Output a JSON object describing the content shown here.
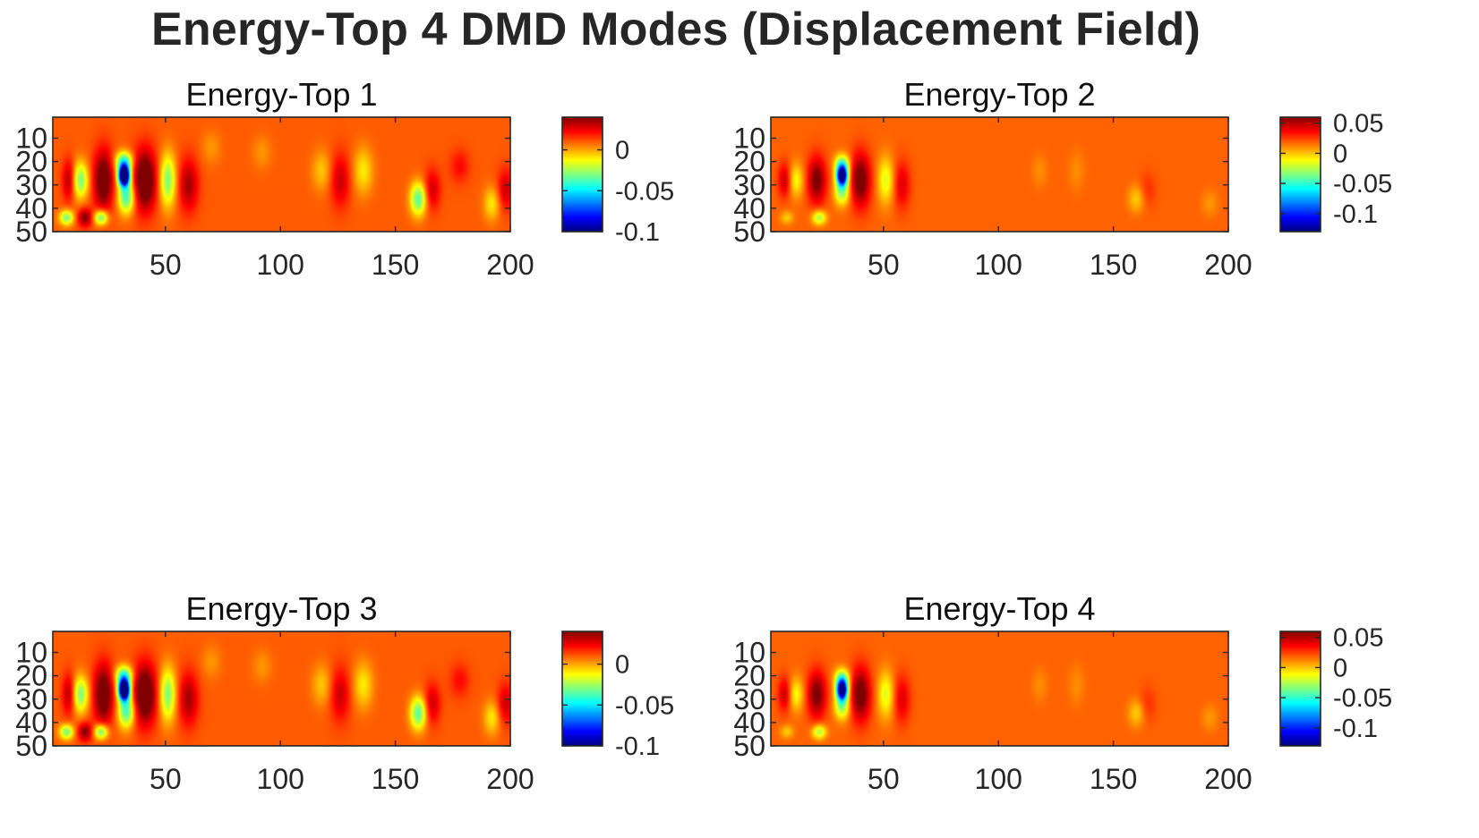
{
  "figure": {
    "title": "Energy-Top 4 DMD Modes (Displacement Field)"
  },
  "chart_data": [
    {
      "type": "heatmap",
      "title": "Energy-Top 1",
      "colormap": "jet",
      "xlim": [
        1,
        200
      ],
      "ylim": [
        1,
        50
      ],
      "x_ticks": [
        "50",
        "100",
        "150",
        "200"
      ],
      "y_ticks": [
        "10",
        "20",
        "30",
        "40",
        "50"
      ],
      "y_reversed": true,
      "colorbar": {
        "min": -0.1,
        "max": 0.04,
        "ticks": [
          {
            "value": 0,
            "label": "0"
          },
          {
            "value": -0.05,
            "label": "-0.05"
          },
          {
            "value": -0.1,
            "label": "-0.1"
          }
        ]
      },
      "background_value": 0.01,
      "features": [
        {
          "x": 32,
          "y": 26,
          "sx": 1.7,
          "sy": 3.0,
          "v": -0.15
        },
        {
          "x": 32,
          "y": 20,
          "sx": 2.6,
          "sy": 3.0,
          "v": -0.05
        },
        {
          "x": 33,
          "y": 35,
          "sx": 2.5,
          "sy": 5.0,
          "v": -0.05
        },
        {
          "x": 13,
          "y": 28,
          "sx": 2.5,
          "sy": 5.5,
          "v": -0.04
        },
        {
          "x": 8,
          "y": 28,
          "sx": 2.0,
          "sy": 6.0,
          "v": 0.025
        },
        {
          "x": 7,
          "y": 44,
          "sx": 2.2,
          "sy": 2.3,
          "v": -0.04
        },
        {
          "x": 15,
          "y": 44,
          "sx": 2.2,
          "sy": 2.8,
          "v": 0.03
        },
        {
          "x": 22,
          "y": 44,
          "sx": 2.2,
          "sy": 2.3,
          "v": -0.045
        },
        {
          "x": 23,
          "y": 28,
          "sx": 3.0,
          "sy": 9.0,
          "v": 0.04
        },
        {
          "x": 41,
          "y": 28,
          "sx": 3.5,
          "sy": 9.0,
          "v": 0.045
        },
        {
          "x": 51,
          "y": 28,
          "sx": 2.5,
          "sy": 8.0,
          "v": -0.04
        },
        {
          "x": 60,
          "y": 30,
          "sx": 3.0,
          "sy": 8.0,
          "v": 0.025
        },
        {
          "x": 70,
          "y": 14,
          "sx": 3.0,
          "sy": 5.0,
          "v": -0.008
        },
        {
          "x": 92,
          "y": 16,
          "sx": 3.0,
          "sy": 5.0,
          "v": -0.008
        },
        {
          "x": 118,
          "y": 24,
          "sx": 3.0,
          "sy": 6.0,
          "v": -0.015
        },
        {
          "x": 126,
          "y": 28,
          "sx": 3.0,
          "sy": 8.0,
          "v": 0.02
        },
        {
          "x": 136,
          "y": 24,
          "sx": 3.0,
          "sy": 7.0,
          "v": -0.02
        },
        {
          "x": 160,
          "y": 36,
          "sx": 2.5,
          "sy": 5.0,
          "v": -0.045
        },
        {
          "x": 166,
          "y": 32,
          "sx": 2.5,
          "sy": 6.0,
          "v": 0.02
        },
        {
          "x": 178,
          "y": 22,
          "sx": 3.0,
          "sy": 5.0,
          "v": 0.012
        },
        {
          "x": 192,
          "y": 38,
          "sx": 2.5,
          "sy": 5.0,
          "v": -0.02
        },
        {
          "x": 198,
          "y": 32,
          "sx": 2.5,
          "sy": 6.0,
          "v": 0.02
        }
      ]
    },
    {
      "type": "heatmap",
      "title": "Energy-Top 2",
      "colormap": "jet",
      "xlim": [
        1,
        200
      ],
      "ylim": [
        1,
        50
      ],
      "x_ticks": [
        "50",
        "100",
        "150",
        "200"
      ],
      "y_ticks": [
        "10",
        "20",
        "30",
        "40",
        "50"
      ],
      "y_reversed": true,
      "colorbar": {
        "min": -0.13,
        "max": 0.06,
        "ticks": [
          {
            "value": 0.05,
            "label": "0.05"
          },
          {
            "value": 0,
            "label": "0"
          },
          {
            "value": -0.05,
            "label": "-0.05"
          },
          {
            "value": -0.1,
            "label": "-0.1"
          }
        ]
      },
      "background_value": 0.018,
      "features": [
        {
          "x": 32,
          "y": 26,
          "sx": 1.7,
          "sy": 3.0,
          "v": -0.16
        },
        {
          "x": 32,
          "y": 21,
          "sx": 2.3,
          "sy": 3.0,
          "v": -0.05
        },
        {
          "x": 32,
          "y": 33,
          "sx": 2.3,
          "sy": 4.0,
          "v": -0.05
        },
        {
          "x": 12,
          "y": 28,
          "sx": 2.3,
          "sy": 5.0,
          "v": -0.03
        },
        {
          "x": 7,
          "y": 28,
          "sx": 2.0,
          "sy": 5.0,
          "v": 0.03
        },
        {
          "x": 8,
          "y": 44,
          "sx": 2.0,
          "sy": 2.0,
          "v": -0.02
        },
        {
          "x": 22,
          "y": 44,
          "sx": 2.2,
          "sy": 2.2,
          "v": -0.045
        },
        {
          "x": 21,
          "y": 28,
          "sx": 2.8,
          "sy": 7.0,
          "v": 0.045
        },
        {
          "x": 40,
          "y": 28,
          "sx": 3.0,
          "sy": 8.0,
          "v": 0.05
        },
        {
          "x": 51,
          "y": 28,
          "sx": 2.5,
          "sy": 7.0,
          "v": -0.035
        },
        {
          "x": 58,
          "y": 30,
          "sx": 2.5,
          "sy": 7.0,
          "v": 0.025
        },
        {
          "x": 118,
          "y": 24,
          "sx": 2.5,
          "sy": 5.0,
          "v": -0.008
        },
        {
          "x": 134,
          "y": 24,
          "sx": 2.5,
          "sy": 6.0,
          "v": -0.008
        },
        {
          "x": 160,
          "y": 36,
          "sx": 2.5,
          "sy": 4.0,
          "v": -0.02
        },
        {
          "x": 165,
          "y": 32,
          "sx": 2.5,
          "sy": 5.0,
          "v": 0.01
        },
        {
          "x": 192,
          "y": 38,
          "sx": 2.5,
          "sy": 4.0,
          "v": -0.01
        }
      ]
    },
    {
      "type": "heatmap",
      "title": "Energy-Top 3",
      "colormap": "jet",
      "xlim": [
        1,
        200
      ],
      "ylim": [
        1,
        50
      ],
      "x_ticks": [
        "50",
        "100",
        "150",
        "200"
      ],
      "y_ticks": [
        "10",
        "20",
        "30",
        "40",
        "50"
      ],
      "y_reversed": true,
      "colorbar": {
        "min": -0.1,
        "max": 0.04,
        "ticks": [
          {
            "value": 0,
            "label": "0"
          },
          {
            "value": -0.05,
            "label": "-0.05"
          },
          {
            "value": -0.1,
            "label": "-0.1"
          }
        ]
      },
      "background_value": 0.01,
      "features": [
        {
          "x": 32,
          "y": 26,
          "sx": 1.7,
          "sy": 3.0,
          "v": -0.15
        },
        {
          "x": 32,
          "y": 20,
          "sx": 2.6,
          "sy": 3.0,
          "v": -0.05
        },
        {
          "x": 33,
          "y": 35,
          "sx": 2.5,
          "sy": 5.0,
          "v": -0.05
        },
        {
          "x": 13,
          "y": 28,
          "sx": 2.5,
          "sy": 5.5,
          "v": -0.04
        },
        {
          "x": 8,
          "y": 28,
          "sx": 2.0,
          "sy": 6.0,
          "v": 0.025
        },
        {
          "x": 7,
          "y": 44,
          "sx": 2.2,
          "sy": 2.3,
          "v": -0.04
        },
        {
          "x": 15,
          "y": 44,
          "sx": 2.2,
          "sy": 2.8,
          "v": 0.03
        },
        {
          "x": 22,
          "y": 44,
          "sx": 2.2,
          "sy": 2.3,
          "v": -0.045
        },
        {
          "x": 23,
          "y": 28,
          "sx": 3.0,
          "sy": 9.0,
          "v": 0.04
        },
        {
          "x": 41,
          "y": 28,
          "sx": 3.5,
          "sy": 9.0,
          "v": 0.045
        },
        {
          "x": 51,
          "y": 28,
          "sx": 2.5,
          "sy": 8.0,
          "v": -0.04
        },
        {
          "x": 60,
          "y": 30,
          "sx": 3.0,
          "sy": 8.0,
          "v": 0.025
        },
        {
          "x": 70,
          "y": 14,
          "sx": 3.0,
          "sy": 5.0,
          "v": -0.008
        },
        {
          "x": 92,
          "y": 16,
          "sx": 3.0,
          "sy": 5.0,
          "v": -0.008
        },
        {
          "x": 118,
          "y": 24,
          "sx": 3.0,
          "sy": 6.0,
          "v": -0.015
        },
        {
          "x": 126,
          "y": 28,
          "sx": 3.0,
          "sy": 8.0,
          "v": 0.02
        },
        {
          "x": 136,
          "y": 24,
          "sx": 3.0,
          "sy": 7.0,
          "v": -0.02
        },
        {
          "x": 160,
          "y": 36,
          "sx": 2.5,
          "sy": 5.0,
          "v": -0.045
        },
        {
          "x": 166,
          "y": 32,
          "sx": 2.5,
          "sy": 6.0,
          "v": 0.02
        },
        {
          "x": 178,
          "y": 22,
          "sx": 3.0,
          "sy": 5.0,
          "v": 0.012
        },
        {
          "x": 192,
          "y": 38,
          "sx": 2.5,
          "sy": 5.0,
          "v": -0.02
        },
        {
          "x": 198,
          "y": 32,
          "sx": 2.5,
          "sy": 6.0,
          "v": 0.02
        }
      ]
    },
    {
      "type": "heatmap",
      "title": "Energy-Top 4",
      "colormap": "jet",
      "xlim": [
        1,
        200
      ],
      "ylim": [
        1,
        50
      ],
      "x_ticks": [
        "50",
        "100",
        "150",
        "200"
      ],
      "y_ticks": [
        "10",
        "20",
        "30",
        "40",
        "50"
      ],
      "y_reversed": true,
      "colorbar": {
        "min": -0.13,
        "max": 0.06,
        "ticks": [
          {
            "value": 0.05,
            "label": "0.05"
          },
          {
            "value": 0,
            "label": "0"
          },
          {
            "value": -0.05,
            "label": "-0.05"
          },
          {
            "value": -0.1,
            "label": "-0.1"
          }
        ]
      },
      "background_value": 0.018,
      "features": [
        {
          "x": 32,
          "y": 26,
          "sx": 1.7,
          "sy": 3.0,
          "v": -0.16
        },
        {
          "x": 32,
          "y": 21,
          "sx": 2.3,
          "sy": 3.0,
          "v": -0.05
        },
        {
          "x": 32,
          "y": 33,
          "sx": 2.3,
          "sy": 4.0,
          "v": -0.05
        },
        {
          "x": 12,
          "y": 28,
          "sx": 2.3,
          "sy": 5.0,
          "v": -0.03
        },
        {
          "x": 7,
          "y": 28,
          "sx": 2.0,
          "sy": 5.0,
          "v": 0.03
        },
        {
          "x": 8,
          "y": 44,
          "sx": 2.0,
          "sy": 2.0,
          "v": -0.02
        },
        {
          "x": 22,
          "y": 44,
          "sx": 2.2,
          "sy": 2.2,
          "v": -0.045
        },
        {
          "x": 21,
          "y": 28,
          "sx": 2.8,
          "sy": 7.0,
          "v": 0.045
        },
        {
          "x": 40,
          "y": 28,
          "sx": 3.0,
          "sy": 8.0,
          "v": 0.05
        },
        {
          "x": 51,
          "y": 28,
          "sx": 2.5,
          "sy": 7.0,
          "v": -0.035
        },
        {
          "x": 58,
          "y": 30,
          "sx": 2.5,
          "sy": 7.0,
          "v": 0.025
        },
        {
          "x": 118,
          "y": 24,
          "sx": 2.5,
          "sy": 5.0,
          "v": -0.008
        },
        {
          "x": 134,
          "y": 24,
          "sx": 2.5,
          "sy": 6.0,
          "v": -0.008
        },
        {
          "x": 160,
          "y": 36,
          "sx": 2.5,
          "sy": 4.0,
          "v": -0.02
        },
        {
          "x": 165,
          "y": 32,
          "sx": 2.5,
          "sy": 5.0,
          "v": 0.01
        },
        {
          "x": 192,
          "y": 38,
          "sx": 2.5,
          "sy": 4.0,
          "v": -0.01
        }
      ]
    }
  ]
}
